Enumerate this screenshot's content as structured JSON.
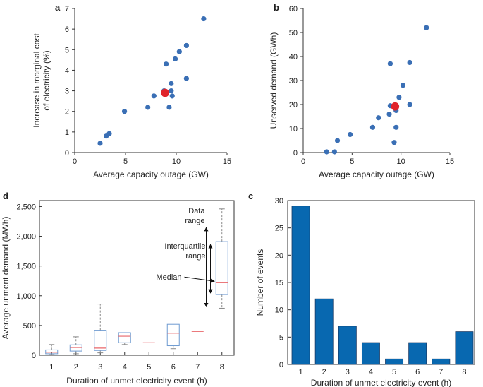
{
  "chart_data": [
    {
      "panel": "a",
      "type": "scatter",
      "xlabel": "Average capacity outage (GW)",
      "ylabel": "Increase in marginal cost of electricity (%)",
      "ylabel_lines": [
        "Increase in marginal cost",
        "of electricity (%)"
      ],
      "xlim": [
        0,
        15
      ],
      "ylim": [
        0,
        7
      ],
      "xticks": [
        0,
        5,
        10,
        15
      ],
      "yticks": [
        0,
        1,
        2,
        3,
        4,
        5,
        6,
        7
      ],
      "points": [
        {
          "x": 2.5,
          "y": 0.45
        },
        {
          "x": 3.1,
          "y": 0.8
        },
        {
          "x": 3.4,
          "y": 0.92
        },
        {
          "x": 4.9,
          "y": 2.0
        },
        {
          "x": 7.2,
          "y": 2.2
        },
        {
          "x": 7.8,
          "y": 2.75
        },
        {
          "x": 8.8,
          "y": 3.0
        },
        {
          "x": 9.0,
          "y": 4.3
        },
        {
          "x": 9.3,
          "y": 2.2
        },
        {
          "x": 9.5,
          "y": 3.35
        },
        {
          "x": 9.5,
          "y": 3.0
        },
        {
          "x": 9.6,
          "y": 2.75
        },
        {
          "x": 9.9,
          "y": 4.55
        },
        {
          "x": 10.3,
          "y": 4.9
        },
        {
          "x": 11.0,
          "y": 5.2
        },
        {
          "x": 11.0,
          "y": 3.6
        },
        {
          "x": 12.7,
          "y": 6.5
        }
      ],
      "highlight": {
        "x": 8.9,
        "y": 2.9
      },
      "point_color": "#3a6fb5",
      "highlight_color": "#e0242b"
    },
    {
      "panel": "b",
      "type": "scatter",
      "xlabel": "Average capacity outage (GW)",
      "ylabel": "Unserved demand (GWh)",
      "xlim": [
        0,
        15
      ],
      "ylim": [
        0,
        60
      ],
      "xticks": [
        0,
        5,
        10,
        15
      ],
      "yticks": [
        0,
        10,
        20,
        30,
        40,
        50,
        60
      ],
      "points": [
        {
          "x": 2.4,
          "y": 0.3
        },
        {
          "x": 3.2,
          "y": 0.3
        },
        {
          "x": 3.5,
          "y": 5.0
        },
        {
          "x": 4.8,
          "y": 7.5
        },
        {
          "x": 7.1,
          "y": 10.5
        },
        {
          "x": 7.7,
          "y": 14.5
        },
        {
          "x": 8.8,
          "y": 16.0
        },
        {
          "x": 8.9,
          "y": 37.0
        },
        {
          "x": 8.9,
          "y": 19.5
        },
        {
          "x": 9.3,
          "y": 4.2
        },
        {
          "x": 9.5,
          "y": 10.5
        },
        {
          "x": 9.5,
          "y": 17.5
        },
        {
          "x": 9.8,
          "y": 23.0
        },
        {
          "x": 10.2,
          "y": 28.0
        },
        {
          "x": 10.9,
          "y": 37.5
        },
        {
          "x": 10.9,
          "y": 20.0
        },
        {
          "x": 12.6,
          "y": 52.0
        }
      ],
      "highlight": {
        "x": 9.4,
        "y": 19.2
      },
      "point_color": "#3a6fb5",
      "highlight_color": "#e0242b"
    },
    {
      "panel": "d",
      "type": "box",
      "xlabel": "Duration of unmet electricity event (h)",
      "ylabel": "Average unment demand (MWh)",
      "ylim": [
        0,
        2600
      ],
      "yticks": [
        0,
        500,
        1000,
        1500,
        2000,
        2500
      ],
      "ytick_labels": [
        "0",
        "500",
        "1,000",
        "1,500",
        "2,000",
        "2,500"
      ],
      "categories": [
        "1",
        "2",
        "3",
        "4",
        "5",
        "6",
        "7",
        "8"
      ],
      "boxes": [
        {
          "min": 10,
          "q1": 25,
          "median": 50,
          "q3": 90,
          "max": 180
        },
        {
          "min": 25,
          "q1": 70,
          "median": 130,
          "q3": 175,
          "max": 310
        },
        {
          "min": 40,
          "q1": 80,
          "median": 120,
          "q3": 420,
          "max": 860
        },
        {
          "min": 180,
          "q1": 210,
          "median": 320,
          "q3": 380,
          "max": 380
        },
        {
          "min": 210,
          "q1": 210,
          "median": 210,
          "q3": 210,
          "max": 210
        },
        {
          "min": 110,
          "q1": 160,
          "median": 370,
          "q3": 520,
          "max": 520
        },
        {
          "min": 400,
          "q1": 400,
          "median": 400,
          "q3": 400,
          "max": 400
        },
        {
          "min": 790,
          "q1": 1020,
          "median": 1220,
          "q3": 1910,
          "max": 2460
        }
      ],
      "annotations": {
        "data_range": [
          "Data",
          "range"
        ],
        "interquartile_range": [
          "Interquartile",
          "range"
        ],
        "median": "Median"
      },
      "box_color": "#6f9bd1",
      "median_color": "#e8666a",
      "whisker_color": "#888888"
    },
    {
      "panel": "c",
      "type": "bar",
      "xlabel": "Duration of unmet electricity event (h)",
      "ylabel": "Number of events",
      "ylim": [
        0,
        30
      ],
      "yticks": [
        0,
        5,
        10,
        15,
        20,
        25,
        30
      ],
      "categories": [
        "1",
        "2",
        "3",
        "4",
        "5",
        "6",
        "7",
        "8"
      ],
      "values": [
        29,
        12,
        7,
        4,
        1,
        4,
        1,
        6
      ],
      "bar_color": "#0868b0"
    }
  ]
}
